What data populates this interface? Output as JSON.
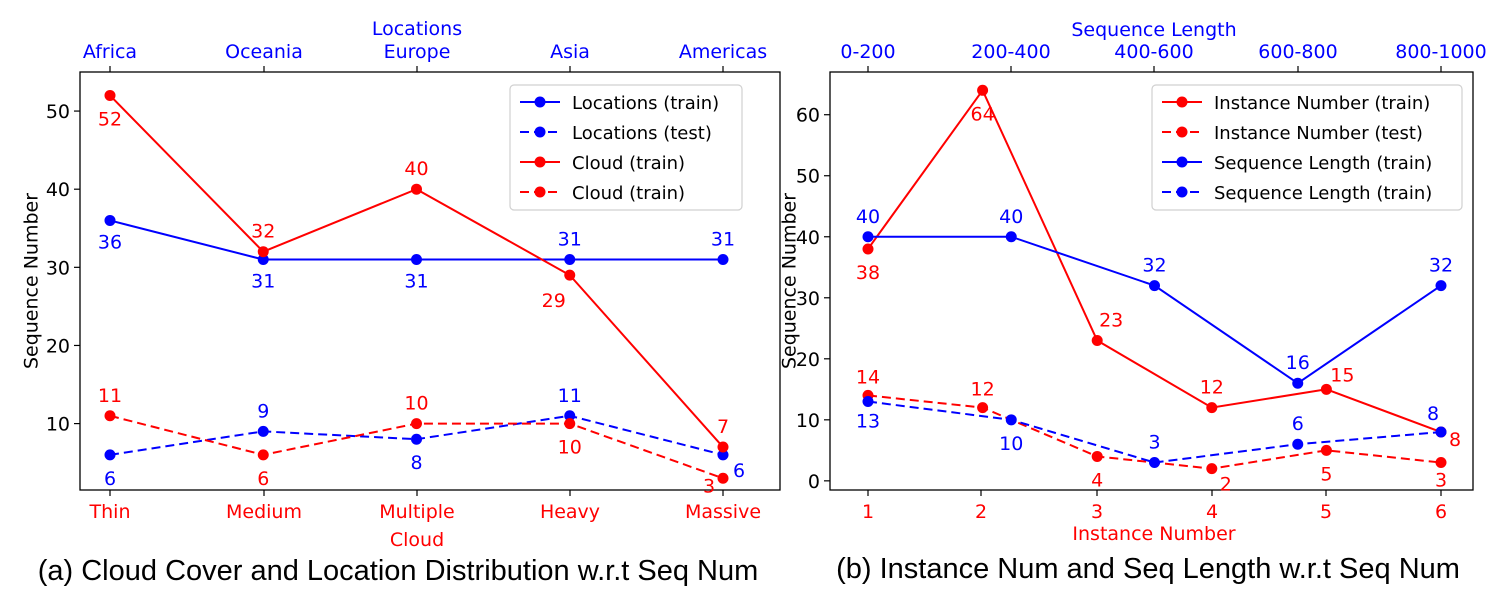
{
  "chart_data": [
    {
      "type": "line",
      "caption": "(a) Cloud Cover and Location Distribution w.r.t Seq Num",
      "ylabel": "Sequence Number",
      "ylim": [
        1.5,
        55
      ],
      "yticks": [
        10,
        20,
        30,
        40,
        50
      ],
      "xlabel_bottom": "Cloud",
      "xticks_bottom": [
        "Thin",
        "Medium",
        "Multiple",
        "Heavy",
        "Massive"
      ],
      "xlabel_top": "Locations",
      "xticks_top": [
        "Africa",
        "Oceania",
        "Europe",
        "Asia",
        "Americas"
      ],
      "legend_position": "upper-right",
      "series": [
        {
          "name": "Locations (train)",
          "color": "#0000ff",
          "style": "solid",
          "x": [
            0,
            1,
            2,
            3,
            4
          ],
          "values": [
            36,
            31,
            31,
            31,
            31
          ],
          "labels": [
            "36",
            "31",
            "31",
            "31",
            "31"
          ]
        },
        {
          "name": "Locations (test)",
          "color": "#0000ff",
          "style": "dashed",
          "x": [
            0,
            1,
            2,
            3,
            4
          ],
          "values": [
            6,
            9,
            8,
            11,
            6
          ],
          "labels": [
            "6",
            "9",
            "8",
            "11",
            "6"
          ]
        },
        {
          "name": "Cloud (train)",
          "color": "#ff0000",
          "style": "solid",
          "x": [
            0,
            1,
            2,
            3,
            4
          ],
          "values": [
            52,
            32,
            40,
            29,
            7
          ],
          "labels": [
            "52",
            "32",
            "40",
            "29",
            "7"
          ]
        },
        {
          "name": "Cloud (train)",
          "color": "#ff0000",
          "style": "dashed",
          "x": [
            0,
            1,
            2,
            3,
            4
          ],
          "values": [
            11,
            6,
            10,
            10,
            3
          ],
          "labels": [
            "11",
            "6",
            "10",
            "10",
            "3"
          ]
        }
      ]
    },
    {
      "type": "line",
      "caption": "(b) Instance Num and Seq Length w.r.t Seq Num",
      "ylabel": "Sequence Number",
      "ylim": [
        -1.5,
        67
      ],
      "yticks": [
        0,
        10,
        20,
        30,
        40,
        50,
        60
      ],
      "xlabel_bottom": "Instance Number",
      "xticks_bottom": [
        "1",
        "2",
        "3",
        "4",
        "5",
        "6"
      ],
      "xlabel_top": "Sequence Length",
      "xticks_top": [
        "0-200",
        "200-400",
        "400-600",
        "600-800",
        "800-1000"
      ],
      "legend_position": "upper-right",
      "series": [
        {
          "name": "Instance Number (train)",
          "color": "#ff0000",
          "style": "solid",
          "x": [
            1,
            2,
            3,
            4,
            5,
            6
          ],
          "values": [
            38,
            64,
            23,
            12,
            15,
            8
          ],
          "labels": [
            "38",
            "64",
            "23",
            "12",
            "15",
            "8"
          ]
        },
        {
          "name": "Instance Number (test)",
          "color": "#ff0000",
          "style": "dashed",
          "x": [
            1,
            2,
            3,
            4,
            5,
            6
          ],
          "values": [
            14,
            12,
            4,
            2,
            5,
            3
          ],
          "labels": [
            "14",
            "12",
            "4",
            "2",
            "5",
            "3"
          ]
        },
        {
          "name": "Sequence Length (train)",
          "color": "#0000ff",
          "style": "solid",
          "x": [
            1,
            2.25,
            3.5,
            4.75,
            6
          ],
          "values": [
            40,
            40,
            32,
            16,
            32
          ],
          "labels": [
            "40",
            "40",
            "32",
            "16",
            "32"
          ]
        },
        {
          "name": "Sequence Length (train)",
          "color": "#0000ff",
          "style": "dashed",
          "x": [
            1,
            2.25,
            3.5,
            4.75,
            6
          ],
          "values": [
            13,
            10,
            3,
            6,
            8
          ],
          "labels": [
            "13",
            "10",
            "3",
            "6",
            "8"
          ]
        }
      ]
    }
  ]
}
